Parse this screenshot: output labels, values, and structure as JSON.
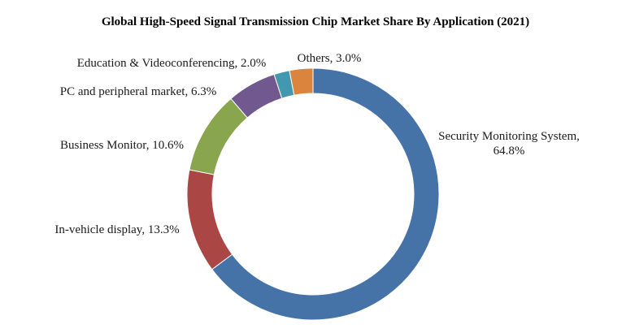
{
  "chart_data": {
    "type": "pie",
    "variant": "donut",
    "title": "Global High-Speed Signal Transmission Chip Market Share By Application (2021)",
    "categories": [
      "Security Monitoring System",
      "In-vehicle display",
      "Business Monitor",
      "PC and peripheral market",
      "Education & Videoconferencing",
      "Others"
    ],
    "values": [
      64.8,
      13.3,
      10.6,
      6.3,
      2.0,
      3.0
    ],
    "value_suffix": "%",
    "label_lines": [
      [
        "Security Monitoring System,",
        "64.8%"
      ],
      [
        "In-vehicle display, 13.3%"
      ],
      [
        "Business Monitor, 10.6%"
      ],
      [
        "PC and peripheral market, 6.3%"
      ],
      [
        "Education & Videoconferencing, 2.0%"
      ],
      [
        "Others, 3.0%"
      ]
    ],
    "colors": [
      "#4572A7",
      "#AA4643",
      "#89A54E",
      "#71588F",
      "#4198AF",
      "#DB843D"
    ],
    "start_angle_deg": 0,
    "direction": "clockwise",
    "legend": "none"
  }
}
